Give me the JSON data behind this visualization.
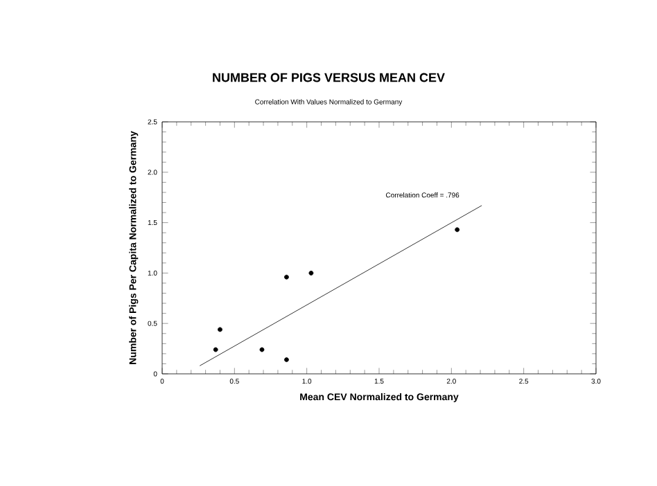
{
  "chart_data": {
    "type": "scatter",
    "title": "NUMBER OF PIGS VERSUS MEAN CEV",
    "subtitle": "Correlation With Values Normalized to Germany",
    "xlabel": "Mean CEV Normalized to Germany",
    "ylabel": "Number of Pigs Per Capita Normalized to Germany",
    "xlim": [
      0,
      3
    ],
    "ylim": [
      0,
      2.5
    ],
    "xticks": [
      0,
      {
        "value": 0.5,
        "label": "0.5"
      },
      {
        "value": 1,
        "label": "1.0"
      },
      {
        "value": 1.5,
        "label": "1.5"
      },
      {
        "value": 2,
        "label": "2.0"
      },
      {
        "value": 2.5,
        "label": "2.5"
      },
      {
        "value": 3,
        "label": "3.0"
      }
    ],
    "yticks": [
      0,
      {
        "value": 0.5,
        "label": "0.5"
      },
      {
        "value": 1,
        "label": "1.0"
      },
      {
        "value": 1.5,
        "label": "1.5"
      },
      {
        "value": 2,
        "label": "2.0"
      },
      {
        "value": 2.5,
        "label": "2.5"
      }
    ],
    "grid": false,
    "series": [
      {
        "marker": "circle",
        "color": "#000000",
        "x": [
          0.37,
          0.4,
          0.69,
          0.86,
          0.86,
          1.03,
          2.04
        ],
        "values": [
          0.24,
          0.44,
          0.24,
          0.14,
          0.96,
          1.0,
          1.43
        ]
      },
      {
        "type": "line",
        "marker": "none",
        "color": "#000000",
        "x": [
          0.26,
          2.21
        ],
        "values": [
          0.08,
          1.67
        ]
      }
    ],
    "annotations": [
      "Correlation Coeff = .796"
    ]
  }
}
